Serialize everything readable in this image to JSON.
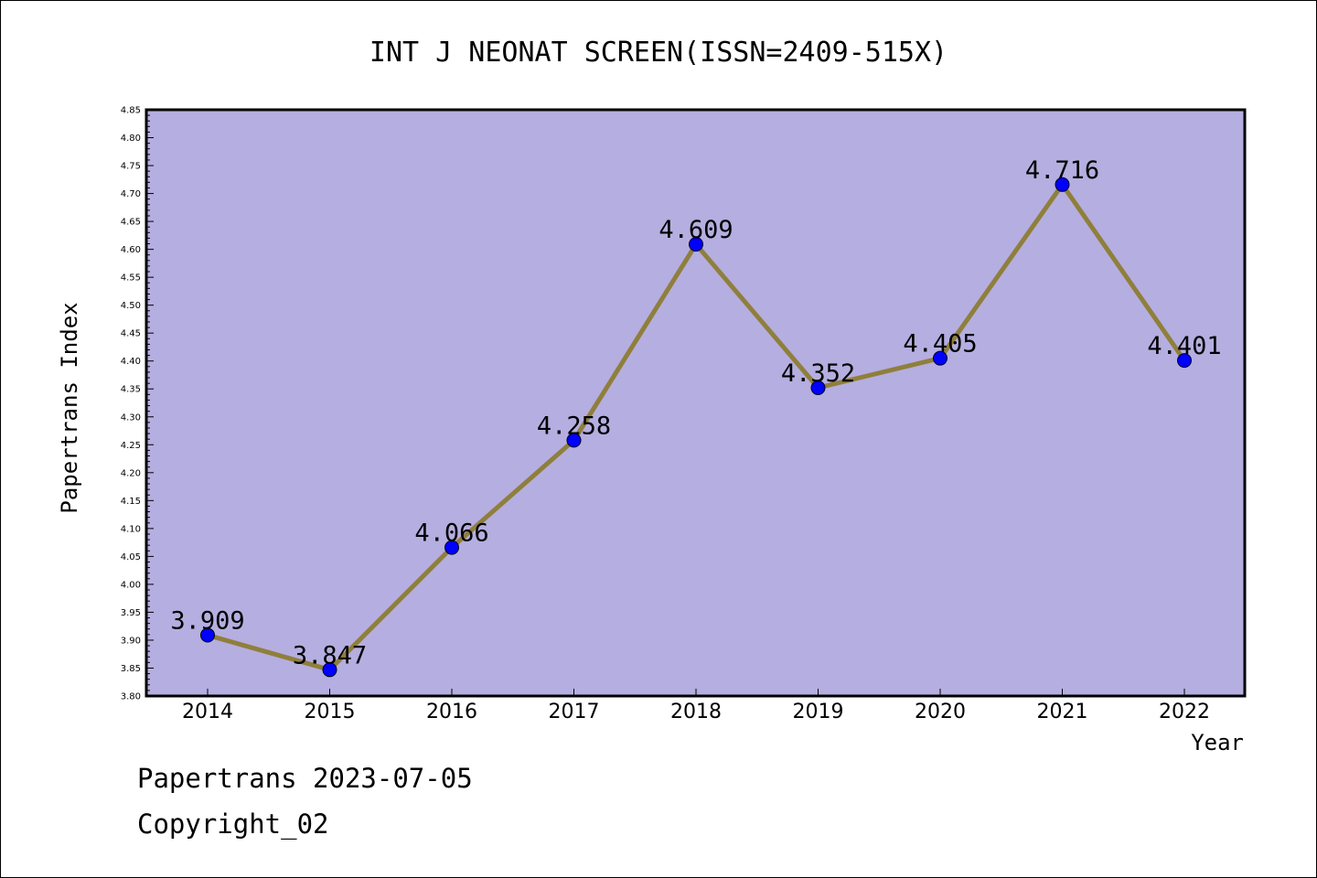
{
  "chart_data": {
    "type": "line",
    "title": "INT J NEONAT SCREEN(ISSN=2409-515X)",
    "xlabel": "Year",
    "ylabel": "Papertrans Index",
    "categories": [
      "2014",
      "2015",
      "2016",
      "2017",
      "2018",
      "2019",
      "2020",
      "2021",
      "2022"
    ],
    "series": [
      {
        "values": [
          3.909,
          3.847,
          4.066,
          4.258,
          4.609,
          4.352,
          4.405,
          4.716,
          4.401
        ],
        "labels": [
          "3.909",
          "3.847",
          "4.066",
          "4.258",
          "4.609",
          "4.352",
          "4.405",
          "4.716",
          "4.401"
        ]
      }
    ],
    "ylim": [
      3.8,
      4.85
    ],
    "yticks": [
      "3.80",
      "3.85",
      "3.90",
      "3.95",
      "4.00",
      "4.05",
      "4.10",
      "4.15",
      "4.20",
      "4.25",
      "4.30",
      "4.35",
      "4.40",
      "4.45",
      "4.50",
      "4.55",
      "4.60",
      "4.65",
      "4.70",
      "4.75",
      "4.80",
      "4.85"
    ],
    "grid": false,
    "colors": {
      "plot_background": "#b5aee0",
      "line": "#8f7f3c",
      "marker": "#0000ff"
    }
  },
  "footer": {
    "date_text": "Papertrans 2023-07-05",
    "copyright_text": "Copyright_02"
  }
}
